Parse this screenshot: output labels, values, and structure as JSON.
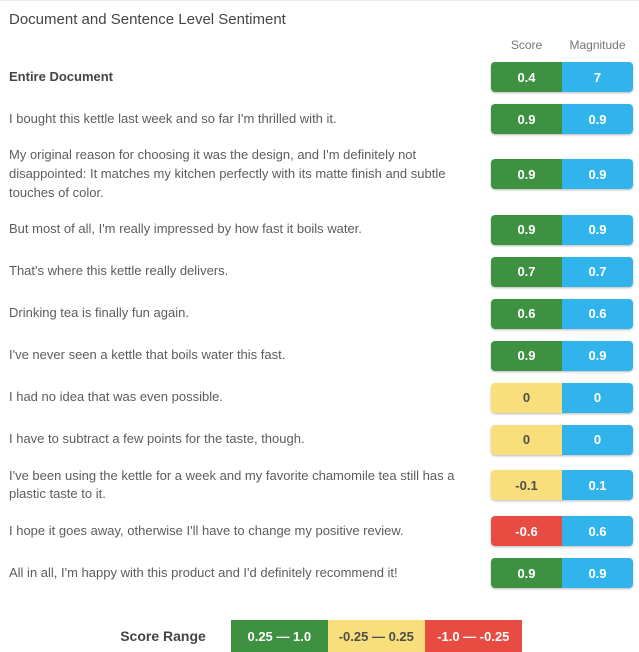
{
  "title": "Document and Sentence Level Sentiment",
  "columns": {
    "score": "Score",
    "magnitude": "Magnitude"
  },
  "palette": {
    "positive": "#3d9140",
    "neutral": "#f8df7c",
    "negative": "#e84b42",
    "magnitude": "#31b4ec",
    "text_on_dark": "#ffffff",
    "text_on_neutral": "#4d4d4d"
  },
  "rows": [
    {
      "text": "Entire Document",
      "score": "0.4",
      "magnitude": "7",
      "sentiment": "positive",
      "score_color": "#3d9140",
      "score_text_color": "#ffffff"
    },
    {
      "text": "I bought this kettle last week and so far I'm thrilled with it.",
      "score": "0.9",
      "magnitude": "0.9",
      "sentiment": "positive",
      "score_color": "#3d9140",
      "score_text_color": "#ffffff"
    },
    {
      "text": "My original reason for choosing it was the design, and I'm definitely not disappointed: It matches my kitchen perfectly with its matte finish and subtle touches of color.",
      "score": "0.9",
      "magnitude": "0.9",
      "sentiment": "positive",
      "score_color": "#3d9140",
      "score_text_color": "#ffffff"
    },
    {
      "text": "But most of all, I'm really impressed by how fast it boils water.",
      "score": "0.9",
      "magnitude": "0.9",
      "sentiment": "positive",
      "score_color": "#3d9140",
      "score_text_color": "#ffffff"
    },
    {
      "text": "That's where this kettle really delivers.",
      "score": "0.7",
      "magnitude": "0.7",
      "sentiment": "positive",
      "score_color": "#3d9140",
      "score_text_color": "#ffffff"
    },
    {
      "text": "Drinking tea is finally fun again.",
      "score": "0.6",
      "magnitude": "0.6",
      "sentiment": "positive",
      "score_color": "#3d9140",
      "score_text_color": "#ffffff"
    },
    {
      "text": "I've never seen a kettle that boils water this fast.",
      "score": "0.9",
      "magnitude": "0.9",
      "sentiment": "positive",
      "score_color": "#3d9140",
      "score_text_color": "#ffffff"
    },
    {
      "text": "I had no idea that was even possible.",
      "score": "0",
      "magnitude": "0",
      "sentiment": "neutral",
      "score_color": "#f8df7c",
      "score_text_color": "#4d4d4d"
    },
    {
      "text": "I have to subtract a few points for the taste, though.",
      "score": "0",
      "magnitude": "0",
      "sentiment": "neutral",
      "score_color": "#f8df7c",
      "score_text_color": "#4d4d4d"
    },
    {
      "text": "I've been using the kettle for a week and my favorite chamomile tea still has a plastic taste to it.",
      "score": "-0.1",
      "magnitude": "0.1",
      "sentiment": "neutral",
      "score_color": "#f8df7c",
      "score_text_color": "#4d4d4d"
    },
    {
      "text": "I hope it goes away, otherwise I'll have to change my positive review.",
      "score": "-0.6",
      "magnitude": "0.6",
      "sentiment": "negative",
      "score_color": "#e84b42",
      "score_text_color": "#ffffff"
    },
    {
      "text": "All in all, I'm happy with this product and I'd definitely recommend it!",
      "score": "0.9",
      "magnitude": "0.9",
      "sentiment": "positive",
      "score_color": "#3d9140",
      "score_text_color": "#ffffff"
    }
  ],
  "legend": {
    "label": "Score Range",
    "ranges": [
      {
        "label": "0.25 — 1.0",
        "color": "#3d9140",
        "text_color": "#ffffff"
      },
      {
        "label": "-0.25 — 0.25",
        "color": "#f8df7c",
        "text_color": "#4d4d4d"
      },
      {
        "label": "-1.0 — -0.25",
        "color": "#e84b42",
        "text_color": "#ffffff"
      }
    ]
  }
}
